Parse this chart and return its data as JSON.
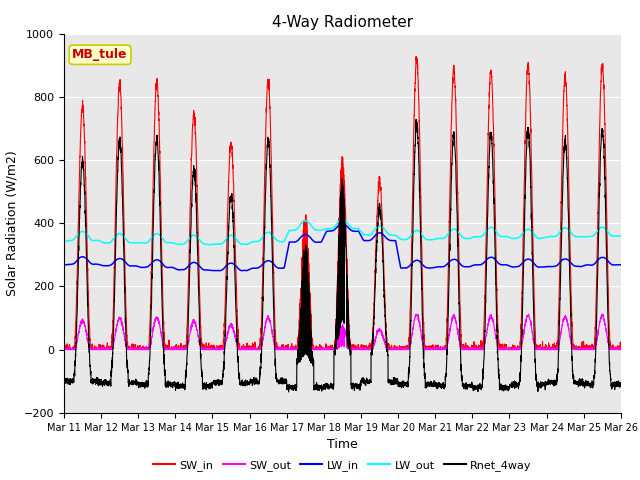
{
  "title": "4-Way Radiometer",
  "xlabel": "Time",
  "ylabel": "Solar Radiation (W/m2)",
  "ylim": [
    -200,
    1000
  ],
  "n_days": 15,
  "legend_labels": [
    "SW_in",
    "SW_out",
    "LW_in",
    "LW_out",
    "Rnet_4way"
  ],
  "line_colors": [
    "red",
    "magenta",
    "blue",
    "cyan",
    "black"
  ],
  "annotation_text": "MB_tule",
  "annotation_color": "#cc0000",
  "annotation_bg": "#ffffcc",
  "annotation_border": "#cccc00",
  "background_color": "#e8e8e8",
  "title_fontsize": 11,
  "label_fontsize": 9,
  "tick_fontsize": 7,
  "tick_labels": [
    "Mar 11",
    "Mar 12",
    "Mar 13",
    "Mar 14",
    "Mar 15",
    "Mar 16",
    "Mar 17",
    "Mar 18",
    "Mar 19",
    "Mar 20",
    "Mar 21",
    "Mar 22",
    "Mar 23",
    "Mar 24",
    "Mar 25",
    "Mar 26"
  ]
}
